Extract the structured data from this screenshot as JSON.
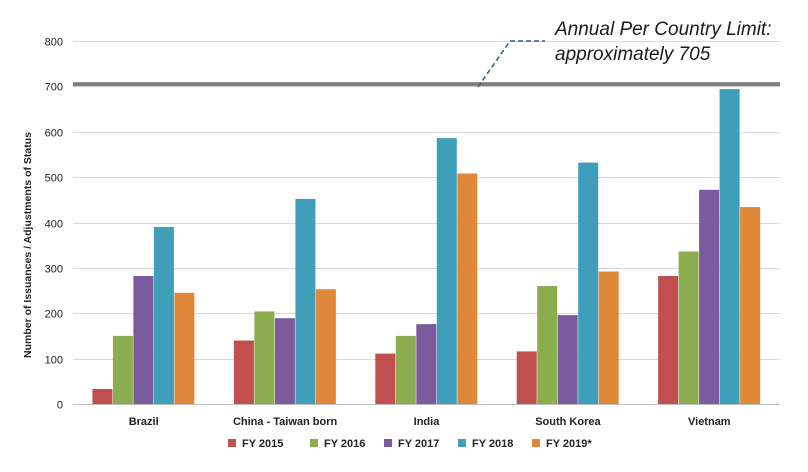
{
  "chart_data": {
    "type": "bar",
    "title": "",
    "xlabel": "",
    "ylabel": "Number of Issuances / Adjustments of Status",
    "ylim": [
      0,
      800
    ],
    "yticks": [
      "0",
      "100",
      "200",
      "300",
      "400",
      "500",
      "600",
      "700",
      "800"
    ],
    "grid": true,
    "legend_position": "bottom",
    "categories": [
      "Brazil",
      "China - Taiwan born",
      "India",
      "South Korea",
      "Vietnam"
    ],
    "series": [
      {
        "name": "FY 2015",
        "color": "#c0504d",
        "values": [
          33,
          140,
          111,
          116,
          282
        ]
      },
      {
        "name": "FY 2016",
        "color": "#8cad4f",
        "values": [
          150,
          204,
          150,
          260,
          336
        ]
      },
      {
        "name": "FY 2017",
        "color": "#7b5a9e",
        "values": [
          282,
          189,
          176,
          196,
          472
        ]
      },
      {
        "name": "FY 2018",
        "color": "#3f9fba",
        "values": [
          390,
          452,
          586,
          532,
          694
        ]
      },
      {
        "name": "FY 2019*",
        "color": "#e0883a",
        "values": [
          245,
          253,
          508,
          292,
          434
        ]
      }
    ],
    "reference_line": {
      "value": 705,
      "color": "#808080",
      "label_line1": "Annual Per Country Limit:",
      "label_line2": "approximately 705"
    }
  }
}
